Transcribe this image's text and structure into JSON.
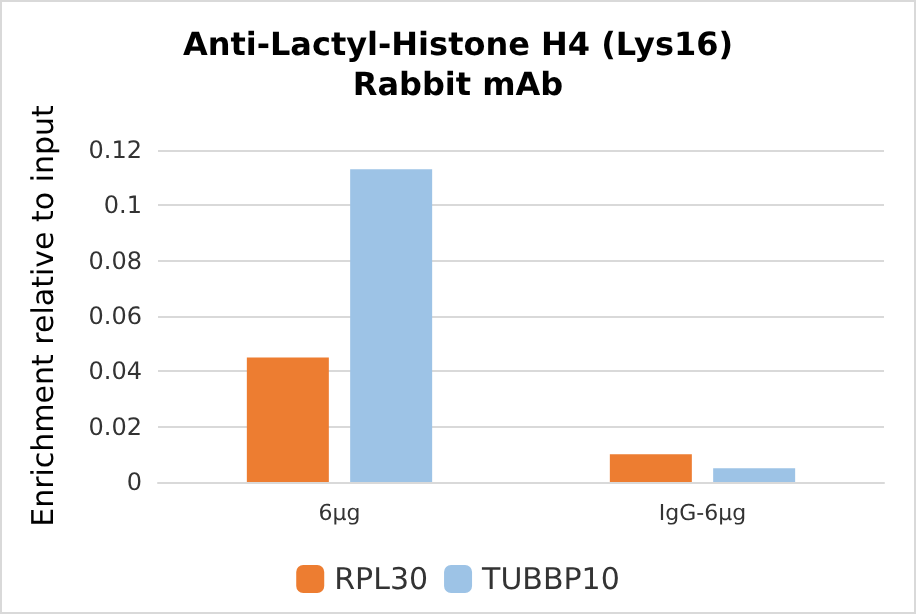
{
  "chart_data": {
    "type": "bar",
    "title": "Anti-Lactyl-Histone H4 (Lys16)\nRabbit mAb",
    "ylabel": "Enrichment relative to input",
    "categories": [
      "6μg",
      "IgG-6μg"
    ],
    "series": [
      {
        "name": "RPL30",
        "color": "#ed7d31",
        "values": [
          0.045,
          0.01
        ]
      },
      {
        "name": "TUBBP10",
        "color": "#9dc3e6",
        "values": [
          0.113,
          0.005
        ]
      }
    ],
    "ylim": [
      0,
      0.12
    ],
    "yticks": [
      0,
      0.02,
      0.04,
      0.06,
      0.08,
      0.1,
      0.12
    ],
    "grid": "y",
    "legend": "bottom"
  }
}
